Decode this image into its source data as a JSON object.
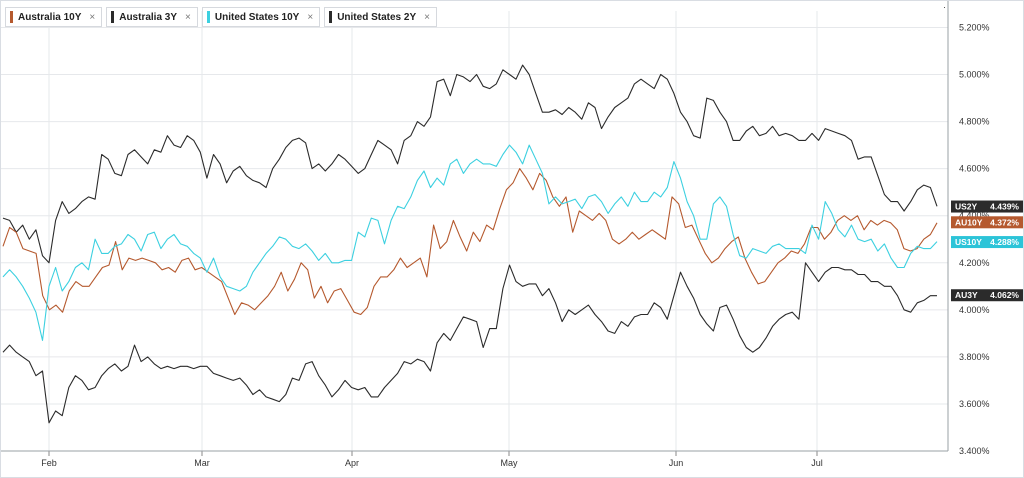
{
  "legend": [
    {
      "label": "Australia 10Y",
      "color": "#b5592e",
      "close": "×"
    },
    {
      "label": "Australia 3Y",
      "color": "#2b2b2b",
      "close": "×"
    },
    {
      "label": "United States 10Y",
      "color": "#3cd0e0",
      "close": "×"
    },
    {
      "label": "United States 2Y",
      "color": "#2b2b2b",
      "close": "×"
    }
  ],
  "chart_data": {
    "type": "line",
    "x_ticks": [
      "Feb",
      "Mar",
      "Apr",
      "May",
      "Jun",
      "Jul"
    ],
    "y_ticks": [
      "3.400%",
      "3.600%",
      "3.800%",
      "4.000%",
      "4.200%",
      "4.400%",
      "4.600%",
      "4.800%",
      "5.000%",
      "5.200%"
    ],
    "ylim": [
      3.4,
      5.27
    ],
    "y_unit": "%",
    "grid": true,
    "legend_position": "top-left",
    "x_axis": "trading days, mid-January to late July",
    "series": [
      {
        "name": "United States 2Y",
        "end_tag": "US2Y",
        "end_value": "4.439%",
        "color": "#2b2b2b",
        "values": [
          4.39,
          4.38,
          4.33,
          4.36,
          4.3,
          4.34,
          4.23,
          4.2,
          4.38,
          4.46,
          4.41,
          4.43,
          4.46,
          4.48,
          4.47,
          4.66,
          4.64,
          4.58,
          4.57,
          4.66,
          4.68,
          4.65,
          4.62,
          4.68,
          4.67,
          4.74,
          4.7,
          4.69,
          4.74,
          4.72,
          4.67,
          4.56,
          4.66,
          4.62,
          4.54,
          4.59,
          4.61,
          4.57,
          4.55,
          4.54,
          4.52,
          4.6,
          4.64,
          4.69,
          4.72,
          4.73,
          4.71,
          4.6,
          4.62,
          4.59,
          4.62,
          4.66,
          4.64,
          4.61,
          4.58,
          4.6,
          4.66,
          4.72,
          4.7,
          4.68,
          4.62,
          4.72,
          4.74,
          4.8,
          4.78,
          4.82,
          4.97,
          4.98,
          4.91,
          5.0,
          4.99,
          4.97,
          5.0,
          4.95,
          4.94,
          4.96,
          5.02,
          5.0,
          4.98,
          5.04,
          5.0,
          4.92,
          4.84,
          4.84,
          4.85,
          4.83,
          4.86,
          4.84,
          4.81,
          4.88,
          4.86,
          4.77,
          4.82,
          4.86,
          4.88,
          4.9,
          4.96,
          4.98,
          4.96,
          4.94,
          5.0,
          4.98,
          4.92,
          4.84,
          4.8,
          4.74,
          4.73,
          4.9,
          4.89,
          4.84,
          4.8,
          4.72,
          4.72,
          4.76,
          4.78,
          4.74,
          4.75,
          4.78,
          4.74,
          4.75,
          4.74,
          4.72,
          4.72,
          4.75,
          4.72,
          4.77,
          4.76,
          4.75,
          4.74,
          4.72,
          4.64,
          4.65,
          4.65,
          4.57,
          4.49,
          4.46,
          4.46,
          4.42,
          4.46,
          4.51,
          4.53,
          4.52,
          4.44
        ]
      },
      {
        "name": "Australia 10Y",
        "end_tag": "AU10Y",
        "end_value": "4.372%",
        "color": "#b5592e",
        "values": [
          4.27,
          4.35,
          4.33,
          4.26,
          4.25,
          4.24,
          4.06,
          4.0,
          4.02,
          3.99,
          4.08,
          4.12,
          4.1,
          4.1,
          4.14,
          4.18,
          4.19,
          4.29,
          4.17,
          4.22,
          4.21,
          4.22,
          4.21,
          4.2,
          4.17,
          4.18,
          4.16,
          4.21,
          4.22,
          4.17,
          4.18,
          4.16,
          4.14,
          4.12,
          4.05,
          3.98,
          4.03,
          4.02,
          4.0,
          4.03,
          4.06,
          4.1,
          4.16,
          4.08,
          4.13,
          4.2,
          4.17,
          4.05,
          4.1,
          4.03,
          4.08,
          4.09,
          4.04,
          3.99,
          3.98,
          4.01,
          4.1,
          4.14,
          4.14,
          4.17,
          4.22,
          4.18,
          4.2,
          4.22,
          4.14,
          4.36,
          4.26,
          4.29,
          4.38,
          4.31,
          4.25,
          4.33,
          4.29,
          4.36,
          4.34,
          4.43,
          4.51,
          4.54,
          4.6,
          4.56,
          4.51,
          4.58,
          4.55,
          4.48,
          4.44,
          4.48,
          4.33,
          4.42,
          4.4,
          4.38,
          4.41,
          4.38,
          4.3,
          4.28,
          4.3,
          4.33,
          4.3,
          4.32,
          4.34,
          4.32,
          4.3,
          4.48,
          4.45,
          4.35,
          4.36,
          4.3,
          4.24,
          4.2,
          4.22,
          4.26,
          4.29,
          4.31,
          4.22,
          4.16,
          4.11,
          4.12,
          4.16,
          4.2,
          4.22,
          4.25,
          4.24,
          4.28,
          4.35,
          4.35,
          4.3,
          4.33,
          4.38,
          4.4,
          4.38,
          4.4,
          4.34,
          4.38,
          4.36,
          4.38,
          4.37,
          4.34,
          4.26,
          4.25,
          4.26,
          4.3,
          4.32,
          4.37
        ]
      },
      {
        "name": "United States 10Y",
        "end_tag": "US10Y",
        "end_value": "4.288%",
        "color": "#3cd0e0",
        "values": [
          4.14,
          4.17,
          4.14,
          4.1,
          4.05,
          3.99,
          3.87,
          4.1,
          4.18,
          4.08,
          4.12,
          4.18,
          4.2,
          4.17,
          4.3,
          4.24,
          4.24,
          4.27,
          4.28,
          4.32,
          4.3,
          4.25,
          4.32,
          4.33,
          4.26,
          4.3,
          4.32,
          4.28,
          4.27,
          4.24,
          4.22,
          4.16,
          4.22,
          4.14,
          4.1,
          4.09,
          4.08,
          4.1,
          4.16,
          4.2,
          4.24,
          4.27,
          4.31,
          4.3,
          4.27,
          4.26,
          4.28,
          4.25,
          4.21,
          4.24,
          4.2,
          4.2,
          4.21,
          4.21,
          4.33,
          4.31,
          4.39,
          4.38,
          4.28,
          4.38,
          4.44,
          4.43,
          4.48,
          4.55,
          4.59,
          4.52,
          4.56,
          4.53,
          4.62,
          4.64,
          4.58,
          4.62,
          4.64,
          4.62,
          4.62,
          4.61,
          4.66,
          4.7,
          4.67,
          4.62,
          4.7,
          4.64,
          4.58,
          4.45,
          4.48,
          4.45,
          4.46,
          4.47,
          4.43,
          4.48,
          4.49,
          4.46,
          4.41,
          4.45,
          4.48,
          4.44,
          4.5,
          4.46,
          4.46,
          4.5,
          4.48,
          4.52,
          4.63,
          4.56,
          4.46,
          4.4,
          4.3,
          4.3,
          4.45,
          4.48,
          4.44,
          4.32,
          4.23,
          4.22,
          4.26,
          4.25,
          4.24,
          4.27,
          4.28,
          4.26,
          4.26,
          4.26,
          4.24,
          4.36,
          4.3,
          4.46,
          4.41,
          4.34,
          4.31,
          4.36,
          4.3,
          4.29,
          4.3,
          4.25,
          4.28,
          4.22,
          4.18,
          4.18,
          4.24,
          4.27,
          4.26,
          4.26,
          4.29
        ]
      },
      {
        "name": "Australia 3Y",
        "end_tag": "AU3Y",
        "end_value": "4.062%",
        "color": "#2b2b2b",
        "values": [
          3.82,
          3.85,
          3.82,
          3.8,
          3.78,
          3.72,
          3.74,
          3.52,
          3.57,
          3.55,
          3.67,
          3.72,
          3.7,
          3.66,
          3.67,
          3.72,
          3.75,
          3.77,
          3.74,
          3.76,
          3.85,
          3.78,
          3.8,
          3.77,
          3.75,
          3.76,
          3.75,
          3.76,
          3.76,
          3.75,
          3.76,
          3.76,
          3.73,
          3.72,
          3.71,
          3.7,
          3.71,
          3.68,
          3.64,
          3.66,
          3.63,
          3.62,
          3.61,
          3.64,
          3.71,
          3.7,
          3.77,
          3.78,
          3.72,
          3.68,
          3.63,
          3.66,
          3.7,
          3.67,
          3.66,
          3.67,
          3.63,
          3.63,
          3.67,
          3.7,
          3.73,
          3.78,
          3.77,
          3.79,
          3.78,
          3.74,
          3.86,
          3.9,
          3.87,
          3.92,
          3.97,
          3.96,
          3.95,
          3.84,
          3.92,
          3.92,
          4.09,
          4.19,
          4.12,
          4.1,
          4.11,
          4.11,
          4.06,
          4.09,
          4.03,
          3.95,
          4.0,
          3.98,
          4.0,
          4.02,
          3.98,
          3.95,
          3.91,
          3.9,
          3.95,
          3.93,
          3.97,
          3.98,
          3.98,
          4.03,
          4.01,
          3.96,
          4.06,
          4.16,
          4.1,
          4.05,
          3.98,
          3.94,
          3.91,
          4.01,
          4.02,
          3.96,
          3.89,
          3.84,
          3.82,
          3.84,
          3.88,
          3.93,
          3.96,
          3.98,
          3.99,
          3.96,
          4.2,
          4.16,
          4.12,
          4.16,
          4.18,
          4.18,
          4.17,
          4.17,
          4.15,
          4.15,
          4.12,
          4.12,
          4.1,
          4.1,
          4.06,
          4.0,
          3.99,
          4.03,
          4.04,
          4.06,
          4.06
        ]
      }
    ]
  }
}
